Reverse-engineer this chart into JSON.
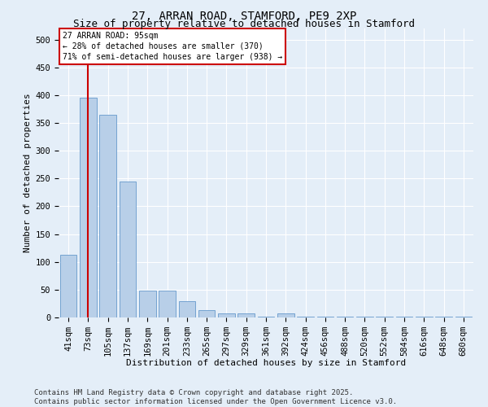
{
  "title": "27, ARRAN ROAD, STAMFORD, PE9 2XP",
  "subtitle": "Size of property relative to detached houses in Stamford",
  "xlabel": "Distribution of detached houses by size in Stamford",
  "ylabel": "Number of detached properties",
  "categories": [
    "41sqm",
    "73sqm",
    "105sqm",
    "137sqm",
    "169sqm",
    "201sqm",
    "233sqm",
    "265sqm",
    "297sqm",
    "329sqm",
    "361sqm",
    "392sqm",
    "424sqm",
    "456sqm",
    "488sqm",
    "520sqm",
    "552sqm",
    "584sqm",
    "616sqm",
    "648sqm",
    "680sqm"
  ],
  "values": [
    113,
    395,
    365,
    245,
    48,
    48,
    30,
    13,
    8,
    8,
    1,
    8,
    1,
    1,
    1,
    1,
    1,
    1,
    1,
    1,
    1
  ],
  "bar_color": "#b8cfe8",
  "bar_edge_color": "#6699cc",
  "bg_color": "#e4eef8",
  "vline_x": 1,
  "vline_color": "#cc0000",
  "annotation_text": "27 ARRAN ROAD: 95sqm\n← 28% of detached houses are smaller (370)\n71% of semi-detached houses are larger (938) →",
  "box_color": "#cc0000",
  "footer": "Contains HM Land Registry data © Crown copyright and database right 2025.\nContains public sector information licensed under the Open Government Licence v3.0.",
  "ylim": [
    0,
    520
  ],
  "yticks": [
    0,
    50,
    100,
    150,
    200,
    250,
    300,
    350,
    400,
    450,
    500
  ],
  "title_fontsize": 10,
  "subtitle_fontsize": 9,
  "axis_label_fontsize": 8,
  "tick_fontsize": 7.5,
  "annotation_fontsize": 7,
  "footer_fontsize": 6.5
}
